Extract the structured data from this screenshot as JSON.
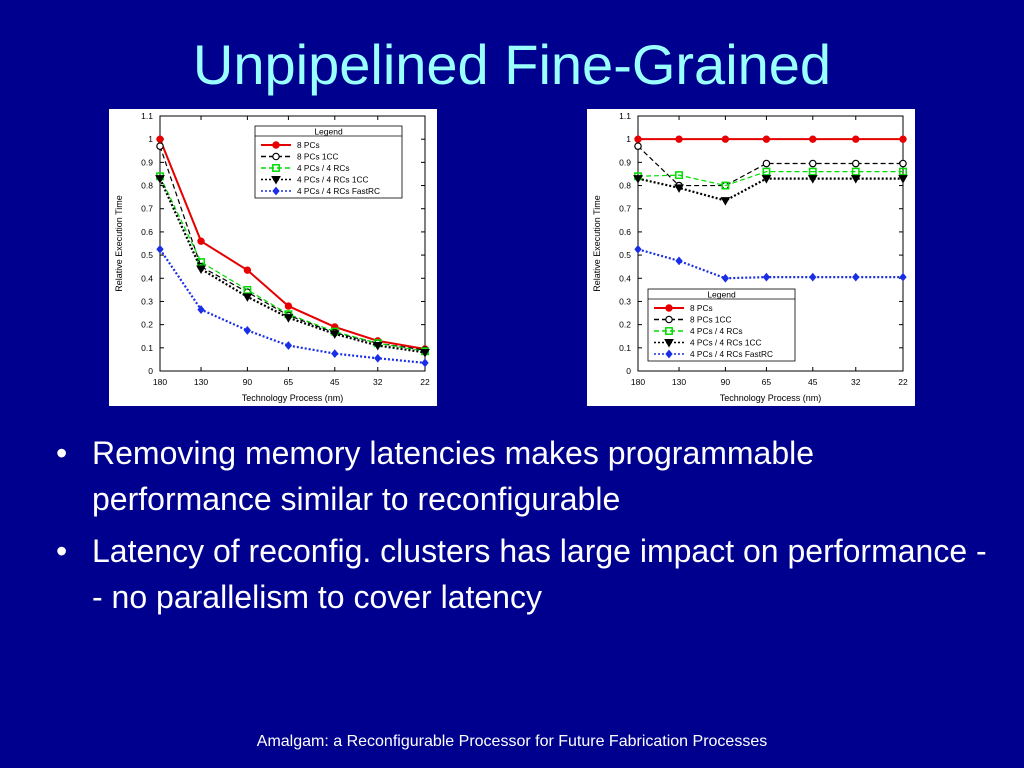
{
  "slide": {
    "title": "Unpipelined Fine-Grained",
    "bullets": [
      "Removing memory latencies makes programmable performance similar to reconfigurable",
      "Latency of reconfig. clusters has large impact on performance -- no parallelism to cover latency"
    ],
    "bullet_glyph": "•",
    "footer": "Amalgam: a Reconfigurable Processor for Future Fabrication Processes"
  },
  "colors": {
    "background": "#00008f",
    "title": "#99ffff",
    "text": "#ffffff"
  },
  "chart_data": [
    {
      "type": "line",
      "xlabel": "Technology Process (nm)",
      "ylabel": "Relative Execution Time",
      "x": [
        180,
        130,
        90,
        65,
        45,
        32,
        22
      ],
      "x_tick_labels": [
        "180",
        "130",
        "90",
        "65",
        "45",
        "32",
        "22"
      ],
      "y_ticks": [
        0,
        0.1,
        0.2,
        0.3,
        0.4,
        0.5,
        0.6,
        0.7,
        0.8,
        0.9,
        1,
        1.1
      ],
      "y_tick_labels": [
        "0",
        "0.1",
        "0.2",
        "0.3",
        "0.4",
        "0.5",
        "0.6",
        "0.7",
        "0.8",
        "0.9",
        "1",
        "1.1"
      ],
      "ylim": [
        0,
        1.1
      ],
      "x_scale": "log",
      "legend_title": "Legend",
      "legend_position": "top-right",
      "series": [
        {
          "name": "8 PCs",
          "values": [
            1.0,
            0.56,
            0.435,
            0.28,
            0.19,
            0.13,
            0.095
          ],
          "color": "#e60000",
          "marker": "circle-filled",
          "dash": "solid"
        },
        {
          "name": "8 PCs 1CC",
          "values": [
            0.97,
            0.45,
            0.34,
            0.24,
            0.165,
            0.12,
            0.09
          ],
          "color": "#000000",
          "marker": "circle-open",
          "dash": "dashed"
        },
        {
          "name": "4 PCs / 4 RCs",
          "values": [
            0.84,
            0.47,
            0.35,
            0.245,
            0.17,
            0.12,
            0.085
          ],
          "color": "#00dd00",
          "marker": "square-open",
          "dash": "dashed"
        },
        {
          "name": "4 PCs / 4 RCs 1CC",
          "values": [
            0.83,
            0.44,
            0.32,
            0.23,
            0.16,
            0.11,
            0.08
          ],
          "color": "#000000",
          "marker": "triangle-down",
          "dash": "dotted"
        },
        {
          "name": "4 PCs / 4 RCs FastRC",
          "values": [
            0.525,
            0.265,
            0.175,
            0.11,
            0.075,
            0.055,
            0.035
          ],
          "color": "#1a2ee6",
          "marker": "diamond",
          "dash": "dotted"
        }
      ]
    },
    {
      "type": "line",
      "xlabel": "Technology Process (nm)",
      "ylabel": "Relative Execution Time",
      "x": [
        180,
        130,
        90,
        65,
        45,
        32,
        22
      ],
      "x_tick_labels": [
        "180",
        "130",
        "90",
        "65",
        "45",
        "32",
        "22"
      ],
      "y_ticks": [
        0,
        0.1,
        0.2,
        0.3,
        0.4,
        0.5,
        0.6,
        0.7,
        0.8,
        0.9,
        1,
        1.1
      ],
      "y_tick_labels": [
        "0",
        "0.1",
        "0.2",
        "0.3",
        "0.4",
        "0.5",
        "0.6",
        "0.7",
        "0.8",
        "0.9",
        "1",
        "1.1"
      ],
      "ylim": [
        0,
        1.1
      ],
      "x_scale": "log",
      "legend_title": "Legend",
      "legend_position": "bottom-left",
      "series": [
        {
          "name": "8 PCs",
          "values": [
            1.0,
            1.0,
            1.0,
            1.0,
            1.0,
            1.0,
            1.0
          ],
          "color": "#e60000",
          "marker": "circle-filled",
          "dash": "solid"
        },
        {
          "name": "8 PCs 1CC",
          "values": [
            0.97,
            0.8,
            0.8,
            0.895,
            0.895,
            0.895,
            0.895
          ],
          "color": "#000000",
          "marker": "circle-open",
          "dash": "dashed"
        },
        {
          "name": "4 PCs / 4 RCs",
          "values": [
            0.84,
            0.845,
            0.8,
            0.86,
            0.86,
            0.86,
            0.86
          ],
          "color": "#00dd00",
          "marker": "square-open",
          "dash": "dashed"
        },
        {
          "name": "4 PCs / 4 RCs 1CC",
          "values": [
            0.83,
            0.79,
            0.735,
            0.83,
            0.83,
            0.83,
            0.83
          ],
          "color": "#000000",
          "marker": "triangle-down",
          "dash": "dotted"
        },
        {
          "name": "4 PCs / 4 RCs FastRC",
          "values": [
            0.525,
            0.475,
            0.4,
            0.405,
            0.405,
            0.405,
            0.405
          ],
          "color": "#1a2ee6",
          "marker": "diamond",
          "dash": "dotted"
        }
      ]
    }
  ]
}
